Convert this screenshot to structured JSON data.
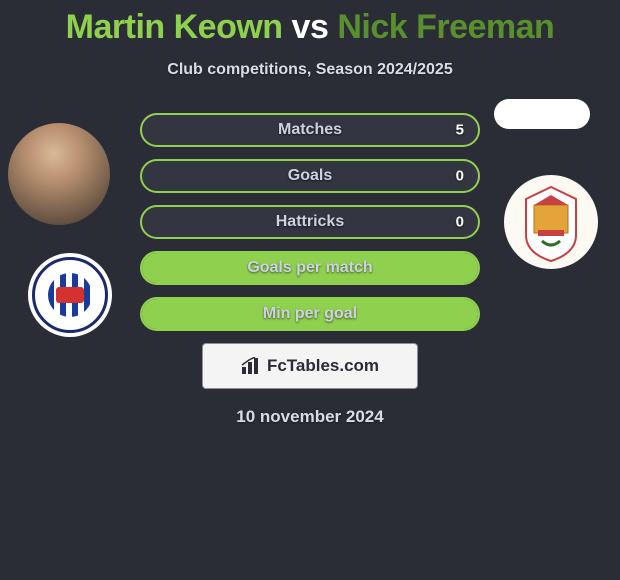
{
  "header": {
    "player1": "Martin Keown",
    "vs": "vs",
    "player2": "Nick Freeman",
    "subtitle": "Club competitions, Season 2024/2025"
  },
  "stats": [
    {
      "label": "Matches",
      "value_right": "5",
      "fill_pct": 0
    },
    {
      "label": "Goals",
      "value_right": "0",
      "fill_pct": 0
    },
    {
      "label": "Hattricks",
      "value_right": "0",
      "fill_pct": 0
    },
    {
      "label": "Goals per match",
      "value_right": "",
      "fill_pct": 100
    },
    {
      "label": "Min per goal",
      "value_right": "",
      "fill_pct": 100
    }
  ],
  "style": {
    "accent_color": "#8fd14f",
    "accent_color_dark": "#5a8f2e",
    "background": "#2a2d36",
    "bar_bg": "#333640",
    "text_muted": "#ccd2df"
  },
  "footer": {
    "brand": "FcTables.com",
    "date": "10 november 2024"
  }
}
